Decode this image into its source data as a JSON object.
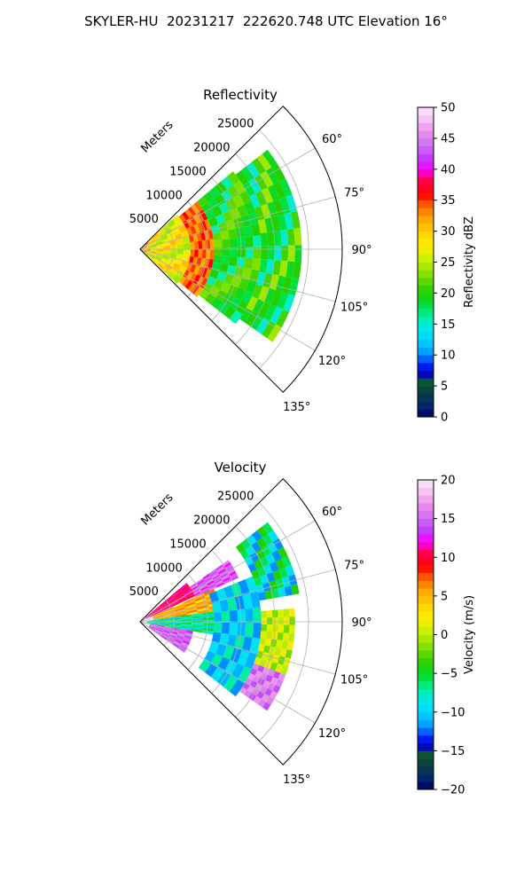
{
  "figure": {
    "title": "SKYLER-HU  20231217  222620.748 UTC Elevation 16°"
  },
  "chart_data": [
    {
      "type": "polar-sector",
      "title": "Reflectivity",
      "radial_axis_label": "Meters",
      "radial_ticks": [
        5000,
        10000,
        15000,
        20000,
        25000
      ],
      "radial_range": [
        0,
        30000
      ],
      "azimuth_range_deg": [
        45,
        135
      ],
      "azimuth_ticks": [
        "60°",
        "75°",
        "90°",
        "105°",
        "120°",
        "135°"
      ],
      "grid": true,
      "colorbar": {
        "label": "Reflectivity dBZ",
        "range": [
          0,
          50
        ],
        "ticks": [
          "0",
          "5",
          "10",
          "15",
          "20",
          "25",
          "30",
          "35",
          "40",
          "45",
          "50"
        ],
        "stops": [
          [
            0,
            "#000060"
          ],
          [
            0.04,
            "#002a6a"
          ],
          [
            0.08,
            "#0a3d3d"
          ],
          [
            0.12,
            "#0b5a35"
          ],
          [
            0.14,
            "#0000c8"
          ],
          [
            0.17,
            "#0020ff"
          ],
          [
            0.2,
            "#0090ff"
          ],
          [
            0.24,
            "#00c8ff"
          ],
          [
            0.28,
            "#00e6f0"
          ],
          [
            0.32,
            "#00f0b0"
          ],
          [
            0.36,
            "#00e040"
          ],
          [
            0.4,
            "#20d000"
          ],
          [
            0.44,
            "#60d800"
          ],
          [
            0.48,
            "#a0e800"
          ],
          [
            0.52,
            "#d8f000"
          ],
          [
            0.56,
            "#ffe800"
          ],
          [
            0.6,
            "#ffd000"
          ],
          [
            0.64,
            "#ffa800"
          ],
          [
            0.68,
            "#ff6a00"
          ],
          [
            0.72,
            "#ff0000"
          ],
          [
            0.76,
            "#ff0040"
          ],
          [
            0.8,
            "#ff00ff"
          ],
          [
            0.84,
            "#c040ff"
          ],
          [
            0.88,
            "#d070f0"
          ],
          [
            0.92,
            "#e890e8"
          ],
          [
            0.96,
            "#f4c0f4"
          ],
          [
            1,
            "#fde8fd"
          ]
        ]
      },
      "data_layers": [
        {
          "az": [
            47,
            133
          ],
          "r": [
            0,
            1500
          ],
          "values": [
            34,
            28,
            30,
            26,
            32
          ]
        },
        {
          "az": [
            47,
            133
          ],
          "r": [
            1500,
            7500
          ],
          "values": [
            28,
            31,
            29,
            25,
            24,
            27
          ]
        },
        {
          "az": [
            50,
            130
          ],
          "r": [
            7500,
            11000
          ],
          "values": [
            34,
            36,
            33,
            35,
            32
          ]
        },
        {
          "az": [
            50,
            128
          ],
          "r": [
            11000,
            18000
          ],
          "values": [
            21,
            19,
            18,
            20,
            16,
            22,
            23
          ]
        },
        {
          "az": [
            52,
            125
          ],
          "r": [
            18000,
            24000
          ],
          "values": [
            20,
            18,
            15,
            21,
            24,
            19
          ]
        }
      ]
    },
    {
      "type": "polar-sector",
      "title": "Velocity",
      "radial_axis_label": "Meters",
      "radial_ticks": [
        5000,
        10000,
        15000,
        20000,
        25000
      ],
      "radial_range": [
        0,
        30000
      ],
      "azimuth_range_deg": [
        45,
        135
      ],
      "azimuth_ticks": [
        "60°",
        "75°",
        "90°",
        "105°",
        "120°",
        "135°"
      ],
      "grid": true,
      "colorbar": {
        "label": "Velocity (m/s)",
        "range": [
          -20,
          20
        ],
        "ticks": [
          "−20",
          "−15",
          "−10",
          "−5",
          "0",
          "5",
          "10",
          "15",
          "20"
        ],
        "stops": [
          [
            0,
            "#000060"
          ],
          [
            0.04,
            "#002a6a"
          ],
          [
            0.08,
            "#0a3d3d"
          ],
          [
            0.12,
            "#0b5a35"
          ],
          [
            0.14,
            "#0000c8"
          ],
          [
            0.17,
            "#0020ff"
          ],
          [
            0.2,
            "#0090ff"
          ],
          [
            0.24,
            "#00c8ff"
          ],
          [
            0.28,
            "#00e6f0"
          ],
          [
            0.32,
            "#00f0b0"
          ],
          [
            0.36,
            "#00e040"
          ],
          [
            0.4,
            "#20d000"
          ],
          [
            0.44,
            "#60d800"
          ],
          [
            0.48,
            "#a0e800"
          ],
          [
            0.52,
            "#d8f000"
          ],
          [
            0.56,
            "#ffe800"
          ],
          [
            0.6,
            "#ffd000"
          ],
          [
            0.64,
            "#ffa800"
          ],
          [
            0.68,
            "#ff6a00"
          ],
          [
            0.72,
            "#ff0000"
          ],
          [
            0.76,
            "#ff0040"
          ],
          [
            0.8,
            "#ff00ff"
          ],
          [
            0.84,
            "#c040ff"
          ],
          [
            0.88,
            "#d070f0"
          ],
          [
            0.92,
            "#e890e8"
          ],
          [
            0.96,
            "#f4c0f4"
          ],
          [
            1,
            "#fde8fd"
          ]
        ]
      },
      "data_layers": [
        {
          "az": [
            50,
            65
          ],
          "r": [
            1000,
            9000
          ],
          "values": [
            10,
            12,
            9,
            11
          ]
        },
        {
          "az": [
            55,
            66
          ],
          "r": [
            9000,
            16000
          ],
          "values": [
            14,
            16,
            12,
            15
          ]
        },
        {
          "az": [
            66,
            82
          ],
          "r": [
            2000,
            12000
          ],
          "values": [
            5,
            7,
            3,
            6
          ]
        },
        {
          "az": [
            82,
            100
          ],
          "r": [
            1000,
            11000
          ],
          "values": [
            -8,
            -6,
            -10,
            -5
          ]
        },
        {
          "az": [
            100,
            125
          ],
          "r": [
            1500,
            8000
          ],
          "values": [
            15,
            13,
            16,
            14
          ]
        },
        {
          "az": [
            68,
            128
          ],
          "r": [
            11000,
            18000
          ],
          "values": [
            -12,
            -9,
            -11,
            -7
          ]
        },
        {
          "az": [
            52,
            80
          ],
          "r": [
            18000,
            24000
          ],
          "values": [
            -4,
            -6,
            -9,
            -12
          ]
        },
        {
          "az": [
            85,
            110
          ],
          "r": [
            18000,
            23000
          ],
          "values": [
            0,
            2,
            -2,
            1
          ]
        },
        {
          "az": [
            110,
            125
          ],
          "r": [
            18000,
            23000
          ],
          "values": [
            16,
            14,
            17
          ]
        }
      ]
    }
  ]
}
